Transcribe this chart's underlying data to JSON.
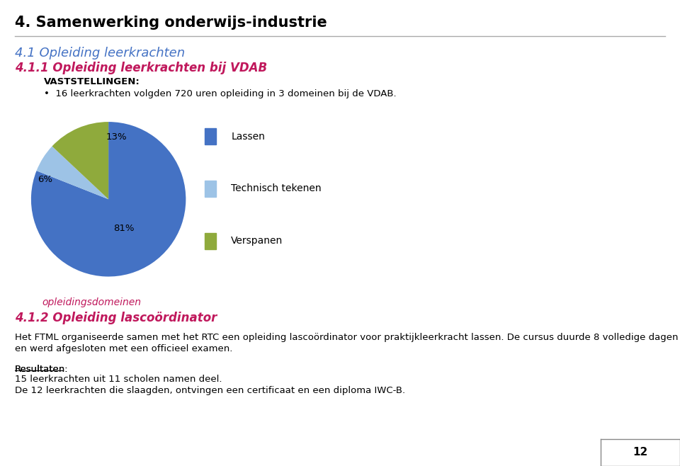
{
  "title_main": "4. Samenwerking onderwijs-industrie",
  "title_main_color": "#000000",
  "title_main_fontsize": 15,
  "heading1": "4.1 Opleiding leerkrachten",
  "heading1_color": "#4472c4",
  "heading1_fontsize": 13,
  "heading2": "4.1.1 Opleiding leerkrachten bij VDAB",
  "heading2_color": "#c0185c",
  "heading2_fontsize": 12,
  "vaststellingen_label": "VASTSTELLINGEN:",
  "vaststellingen_text": "16 leerkrachten volgden 720 uren opleiding in 3 domeinen bij de VDAB.",
  "pie_values": [
    81,
    6,
    13
  ],
  "pie_pct_labels": [
    "81%",
    "6%",
    "13%"
  ],
  "pie_colors": [
    "#4472c4",
    "#9dc3e6",
    "#8faa3c"
  ],
  "pie_legend_labels": [
    "Lassen",
    "Technisch tekenen",
    "Verspanen"
  ],
  "pie_xlabel": "opleidingsdomeinen",
  "pie_xlabel_color": "#c0185c",
  "pie_xlabel_fontsize": 10,
  "heading3": "4.1.2 Opleiding lascoördinator",
  "heading3_color": "#c0185c",
  "heading3_fontsize": 12,
  "body_text1a": "Het FTML organiseerde samen met het RTC een opleiding lascoördinator voor praktijkleerkracht lassen. De cursus duurde 8 volledige dagen",
  "body_text1b": "en werd afgesloten met een officieel examen.",
  "body_text2": "Resultaten:",
  "body_text3": "15 leerkrachten uit 11 scholen namen deel.",
  "body_text4": "De 12 leerkrachten die slaagden, ontvingen een certificaat en een diploma IWC-B.",
  "footer_color": "#4d5d6e",
  "footer_number": "12",
  "background_color": "#ffffff",
  "text_color": "#000000",
  "text_fontsize": 9.5
}
